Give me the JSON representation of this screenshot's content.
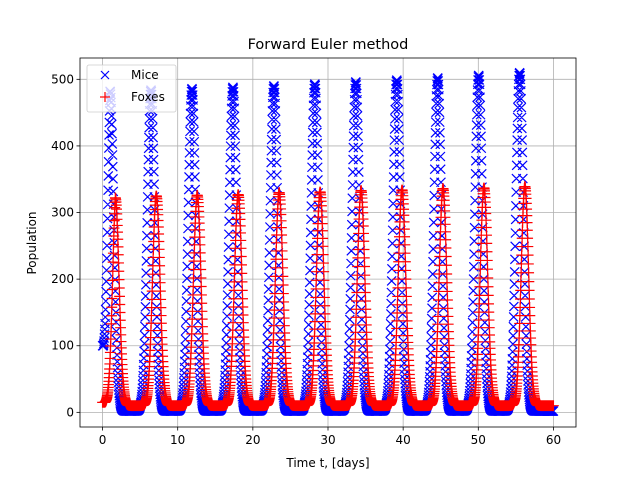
{
  "chart_data": {
    "type": "scatter",
    "title": "Forward Euler method",
    "xlabel": "Time t, [days]",
    "ylabel": "Population",
    "xlim": [
      -3,
      63
    ],
    "ylim": [
      -22,
      532
    ],
    "xticks": [
      0,
      10,
      20,
      30,
      40,
      50,
      60
    ],
    "yticks": [
      0,
      100,
      200,
      300,
      400,
      500
    ],
    "grid": true,
    "legend_position": "upper-left",
    "x_range": [
      0,
      60
    ],
    "period": 5.45,
    "series": [
      {
        "name": "Mice",
        "marker": "x",
        "color": "#0000ff",
        "start": 100,
        "min": 2,
        "peaks": [
          482,
          484,
          486,
          488,
          490,
          493,
          496,
          499,
          502,
          506,
          510
        ],
        "peak_times": [
          1.0,
          6.45,
          11.9,
          17.35,
          22.8,
          28.25,
          33.7,
          39.15,
          44.6,
          50.05,
          55.5
        ]
      },
      {
        "name": "Foxes",
        "marker": "+",
        "color": "#ff0000",
        "start": 15,
        "min": 10,
        "peaks": [
          322,
          325,
          326,
          327,
          330,
          331,
          333,
          334,
          336,
          337,
          339
        ],
        "peak_times": [
          1.7,
          7.15,
          12.6,
          18.05,
          23.5,
          28.95,
          34.4,
          39.85,
          45.3,
          50.75,
          56.2
        ]
      }
    ]
  }
}
